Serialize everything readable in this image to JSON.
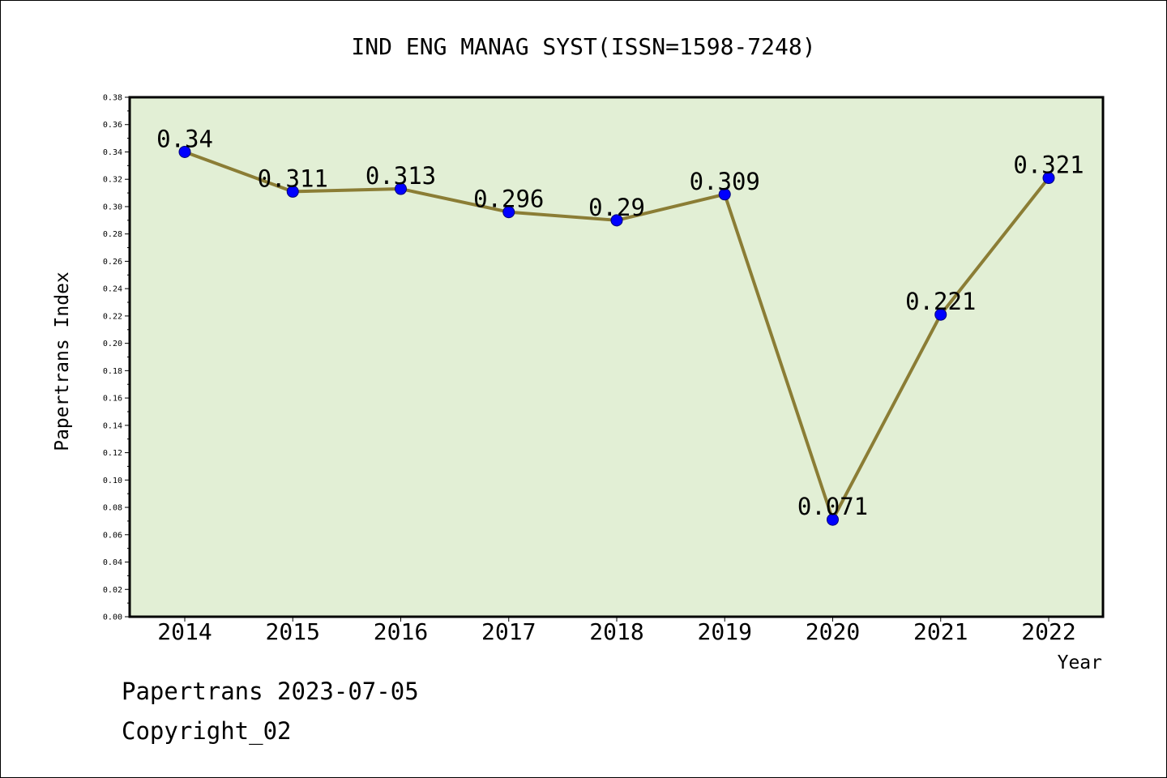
{
  "chart_data": {
    "type": "line",
    "title": "IND ENG MANAG SYST(ISSN=1598-7248)",
    "xlabel": "Year",
    "ylabel": "Papertrans Index",
    "categories": [
      "2014",
      "2015",
      "2016",
      "2017",
      "2018",
      "2019",
      "2020",
      "2021",
      "2022"
    ],
    "series": [
      {
        "values": [
          0.34,
          0.311,
          0.313,
          0.296,
          0.29,
          0.309,
          0.071,
          0.221,
          0.321
        ]
      }
    ],
    "data_labels": [
      "0.34",
      "0.311",
      "0.313",
      "0.296",
      "0.29",
      "0.309",
      "0.071",
      "0.221",
      "0.321"
    ],
    "ylim": [
      0,
      0.38
    ],
    "yticks": [
      "0.00",
      "0.02",
      "0.04",
      "0.06",
      "0.08",
      "0.10",
      "0.12",
      "0.14",
      "0.16",
      "0.18",
      "0.20",
      "0.22",
      "0.24",
      "0.26",
      "0.28",
      "0.30",
      "0.32",
      "0.34",
      "0.36",
      "0.38"
    ],
    "grid": false,
    "colors": {
      "plot_background": "#e2efd5",
      "line": "#8b7d35",
      "marker": "#0000ff"
    }
  },
  "footer": {
    "date_text": "Papertrans 2023-07-05",
    "copyright_text": "Copyright_02"
  }
}
